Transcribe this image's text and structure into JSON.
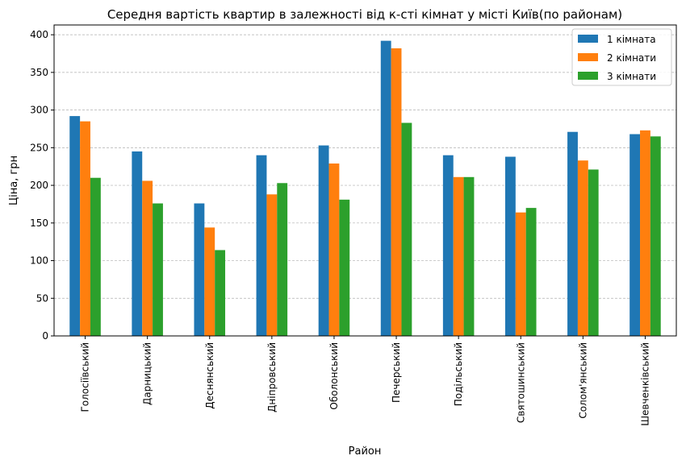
{
  "chart_data": {
    "type": "bar",
    "title": "Середня вартість квартир в залежності від к-сті кімнат у місті Київ(по районам)",
    "xlabel": "Район",
    "ylabel": "Ціна, грн",
    "ylim": [
      0,
      413
    ],
    "yticks": [
      0,
      50,
      100,
      150,
      200,
      250,
      300,
      350,
      400
    ],
    "grid": "horizontal dashed",
    "legend_position": "top-right",
    "categories": [
      "Голосіївський",
      "Дарницький",
      "Деснянський",
      "Дніпровський",
      "Оболонський",
      "Печерський",
      "Подільський",
      "Святошинський",
      "Солом'янський",
      "Шевченківський"
    ],
    "series": [
      {
        "name": "1 кімната",
        "color": "#1f77b4",
        "values": [
          292,
          245,
          176,
          240,
          253,
          392,
          240,
          238,
          271,
          268
        ]
      },
      {
        "name": "2 кімнати",
        "color": "#ff7f0e",
        "values": [
          285,
          206,
          144,
          188,
          229,
          382,
          211,
          164,
          233,
          273
        ]
      },
      {
        "name": "3 кімнати",
        "color": "#2ca02c",
        "values": [
          210,
          176,
          114,
          203,
          181,
          283,
          211,
          170,
          221,
          265
        ]
      }
    ]
  }
}
